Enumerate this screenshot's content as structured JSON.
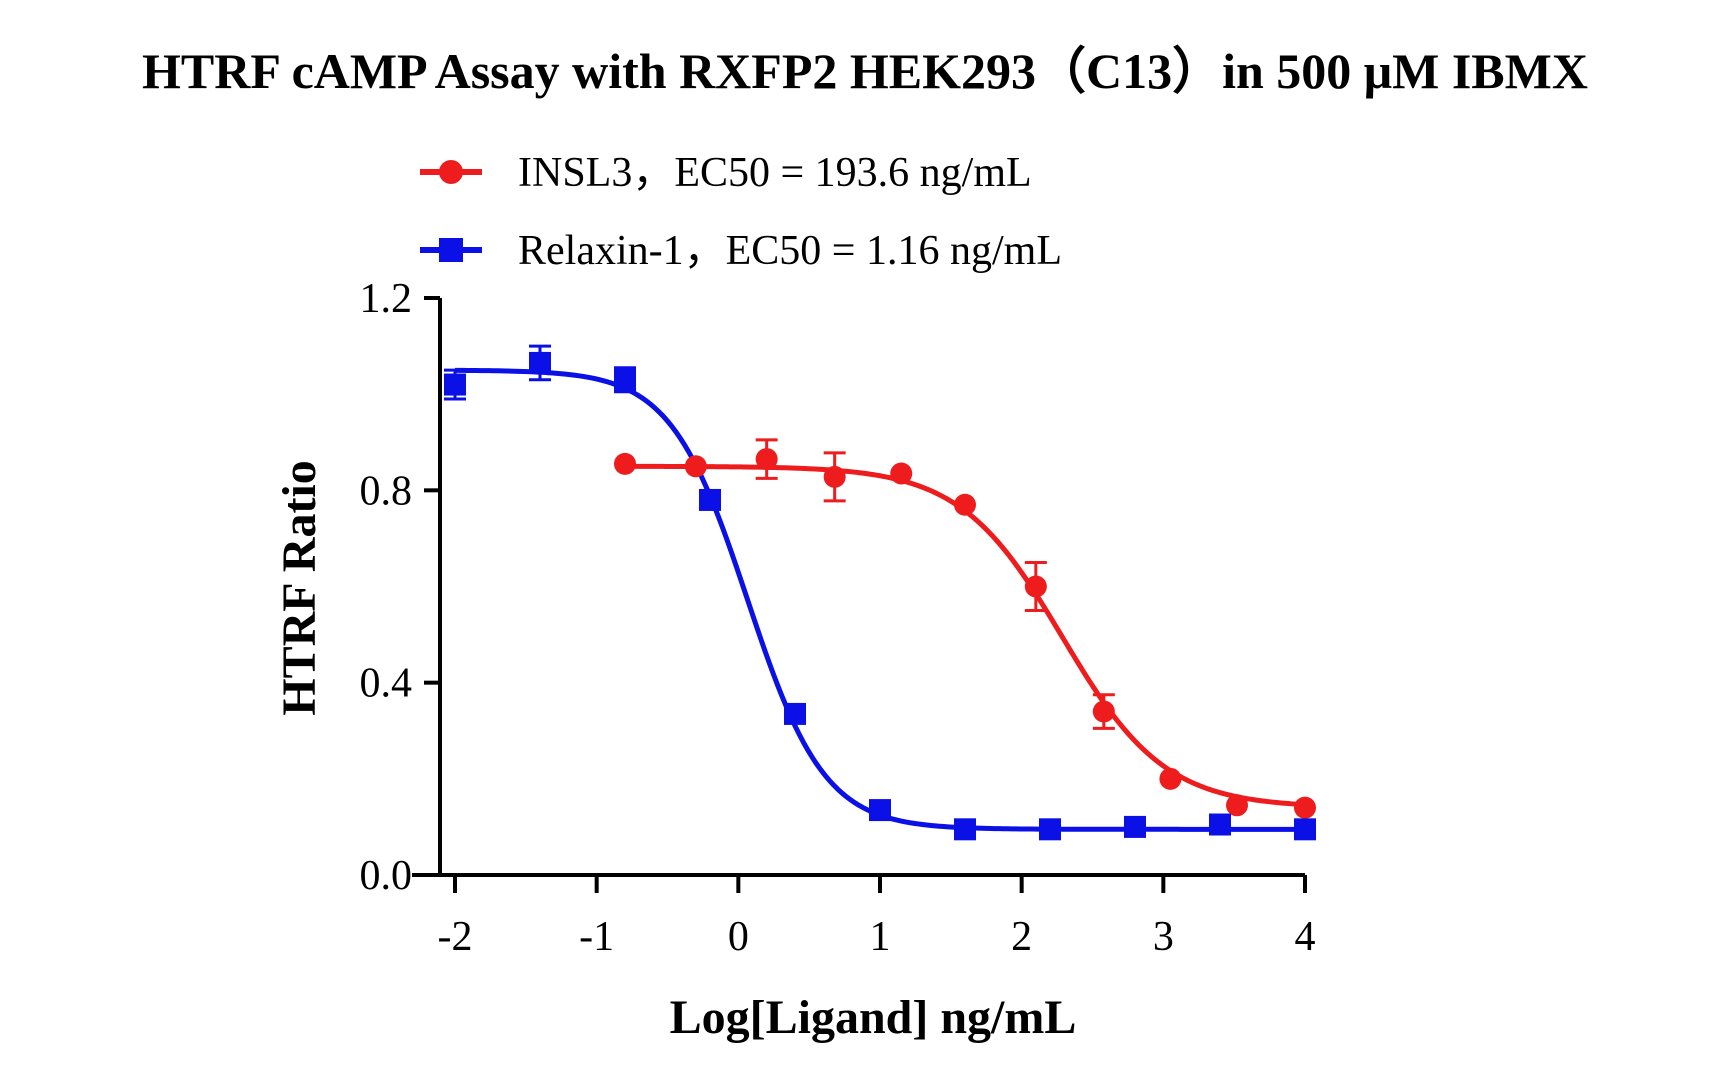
{
  "chart_data": {
    "type": "scatter",
    "title": "HTRF cAMP Assay with RXFP2 HEK293（C13）in 500 μM IBMX",
    "xlabel": "Log[Ligand] ng/mL",
    "ylabel": "HTRF Ratio",
    "xlim": [
      -2.1,
      4.0
    ],
    "ylim": [
      0,
      1.2
    ],
    "x_ticks": [
      "-2",
      "-1",
      "0",
      "1",
      "2",
      "3",
      "4"
    ],
    "y_ticks": [
      "0.0",
      "0.4",
      "0.8",
      "1.2"
    ],
    "grid": false,
    "legend_position": "top-left",
    "series": [
      {
        "name": "INSL3，EC50 = 193.6 ng/mL",
        "color": "#ee1c1c",
        "marker": "circle",
        "x": [
          -0.8,
          -0.3,
          0.2,
          0.68,
          1.15,
          1.6,
          2.1,
          2.58,
          3.05,
          3.52,
          4.0
        ],
        "y": [
          0.855,
          0.85,
          0.865,
          0.828,
          0.835,
          0.77,
          0.6,
          0.34,
          0.2,
          0.145,
          0.14
        ],
        "err": [
          0.0,
          0.0,
          0.04,
          0.05,
          0.0,
          0.0,
          0.05,
          0.035,
          0.0,
          0.0,
          0.0
        ],
        "fit": {
          "top": 0.85,
          "bottom": 0.14,
          "log_ec50": 2.287,
          "hill": -1.2
        }
      },
      {
        "name": "Relaxin-1，EC50 = 1.16 ng/mL",
        "color": "#0a10e6",
        "marker": "square",
        "x": [
          -2.0,
          -1.4,
          -0.8,
          -0.2,
          0.4,
          1.0,
          1.6,
          2.2,
          2.8,
          3.4,
          4.0
        ],
        "y": [
          1.02,
          1.065,
          1.03,
          0.78,
          0.335,
          0.135,
          0.095,
          0.095,
          0.1,
          0.105,
          0.095
        ],
        "err": [
          0.03,
          0.035,
          0.025,
          0.0,
          0.0,
          0.0,
          0.0,
          0.0,
          0.0,
          0.0,
          0.0
        ],
        "fit": {
          "top": 1.05,
          "bottom": 0.095,
          "log_ec50": 0.065,
          "hill": -1.6
        }
      }
    ]
  }
}
